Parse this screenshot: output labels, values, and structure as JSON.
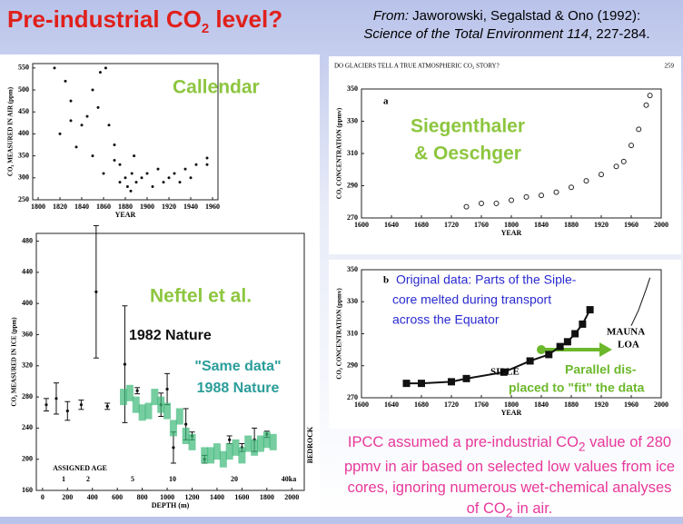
{
  "slide": {
    "title": [
      "Pre-industrial CO",
      "2",
      " level?"
    ],
    "citation": [
      "From:",
      " Jaworowski, Segalstad & Ono (1992):",
      "Science of the Total Environment 114",
      ", 227-284."
    ],
    "footer": [
      "IPCC assumed a pre-industrial CO",
      "2",
      " value of 280 ppmv in air based on selected low values from ice cores, ignoring numerous wet-chemical analyses of CO",
      "2",
      " in air."
    ]
  },
  "chart_data": [
    {
      "type": "scatter",
      "xlabel": "YEAR",
      "ylabel": "CO₂ MEASURED IN AIR (ppm)",
      "xlim": [
        1795,
        1965
      ],
      "ylim": [
        250,
        560
      ],
      "xticks": [
        1800,
        1820,
        1840,
        1860,
        1880,
        1900,
        1920,
        1940,
        1960
      ],
      "yticks": [
        250,
        300,
        350,
        400,
        450,
        500,
        550
      ],
      "annotations": [
        "Callendar"
      ],
      "series": [
        {
          "marker": "dot",
          "color": "#111111",
          "x": [
            1815,
            1820,
            1825,
            1830,
            1830,
            1835,
            1840,
            1845,
            1850,
            1850,
            1855,
            1857,
            1860,
            1862,
            1865,
            1870,
            1870,
            1875,
            1875,
            1880,
            1882,
            1885,
            1886,
            1888,
            1890,
            1895,
            1900,
            1905,
            1910,
            1915,
            1920,
            1925,
            1930,
            1935,
            1940,
            1945,
            1955,
            1955
          ],
          "values": [
            550,
            400,
            520,
            475,
            430,
            370,
            420,
            440,
            500,
            350,
            460,
            540,
            310,
            550,
            420,
            375,
            340,
            290,
            330,
            300,
            280,
            270,
            310,
            350,
            290,
            300,
            310,
            280,
            320,
            290,
            300,
            310,
            290,
            320,
            300,
            330,
            330,
            345
          ]
        }
      ]
    },
    {
      "type": "errorbar",
      "xlabel": "DEPTH (m)",
      "ylabel": "CO₂ MEASURED IN ICE (ppm)",
      "xlim": [
        -50,
        2100
      ],
      "ylim": [
        160,
        490
      ],
      "xticks": [
        0,
        200,
        400,
        600,
        800,
        1000,
        1200,
        1400,
        1600,
        1800,
        2000
      ],
      "yticks": [
        160,
        200,
        240,
        280,
        320,
        360,
        400,
        440,
        480
      ],
      "annotations": [
        "Neftel et al.",
        "1982 Nature",
        "\"Same data\"",
        "1988 Nature",
        "ASSIGNED AGE",
        "1",
        "2",
        "5",
        "10",
        "20",
        "40ka",
        "BEDROCK"
      ],
      "series": [
        {
          "marker": "errorbar",
          "color": "#111111",
          "x": [
            30,
            110,
            200,
            310,
            430,
            520,
            660,
            760,
            950,
            1000,
            1050,
            1150,
            1200,
            1300,
            1500,
            1600,
            1700,
            1800
          ],
          "values": [
            270,
            278,
            262,
            270,
            415,
            268,
            322,
            288,
            270,
            290,
            215,
            245,
            230,
            200,
            225,
            215,
            225,
            232
          ],
          "errors": [
            8,
            20,
            12,
            6,
            85,
            4,
            75,
            4,
            15,
            20,
            20,
            20,
            5,
            5,
            5,
            5,
            15,
            4
          ]
        },
        {
          "marker": "band",
          "color": "#3cb878",
          "x": [
            650,
            700,
            750,
            800,
            850,
            900,
            950,
            1000,
            1050,
            1100,
            1150,
            1200,
            1300,
            1350,
            1400,
            1450,
            1500,
            1550,
            1600,
            1650,
            1700,
            1750,
            1800,
            1850
          ],
          "values": [
            280,
            285,
            270,
            260,
            262,
            280,
            270,
            262,
            240,
            255,
            230,
            222,
            205,
            205,
            210,
            200,
            210,
            215,
            205,
            220,
            215,
            220,
            225,
            222
          ]
        }
      ]
    },
    {
      "type": "scatter",
      "xlabel": "YEAR",
      "ylabel": "CO₂ CONCENTRATION (ppmv)",
      "xlim": [
        1600,
        2000
      ],
      "ylim": [
        270,
        350
      ],
      "xticks": [
        1600,
        1640,
        1680,
        1720,
        1760,
        1800,
        1840,
        1880,
        1920,
        1960,
        2000
      ],
      "yticks": [
        270,
        290,
        310,
        330,
        350
      ],
      "annotations": [
        "DO GLACIERS TELL A TRUE ATMOSPHERIC CO₂ STORY?",
        "259",
        "a",
        "Siegenthaler",
        "& Oeschger"
      ],
      "series": [
        {
          "marker": "circle",
          "color": "#222222",
          "x": [
            1740,
            1760,
            1780,
            1800,
            1820,
            1840,
            1860,
            1880,
            1900,
            1920,
            1940,
            1950,
            1960,
            1970,
            1980,
            1985
          ],
          "values": [
            277,
            279,
            279,
            281,
            283,
            284,
            286,
            289,
            293,
            297,
            302,
            305,
            315,
            325,
            340,
            346
          ]
        }
      ]
    },
    {
      "type": "scatter",
      "xlabel": "YEAR",
      "ylabel": "CO₂ CONCENTRATION (ppmv)",
      "xlim": [
        1600,
        2000
      ],
      "ylim": [
        270,
        350
      ],
      "xticks": [
        1600,
        1640,
        1680,
        1720,
        1760,
        1800,
        1840,
        1880,
        1920,
        1960,
        2000
      ],
      "yticks": [
        270,
        290,
        310,
        330,
        350
      ],
      "annotations": [
        "b",
        "Original data: Parts of the Siple-",
        "core melted during transport",
        "across the Equator",
        "MAUNA",
        "LOA",
        "SIPLE",
        "Parallel dis-",
        "placed to \"fit\" the data"
      ],
      "series": [
        {
          "marker": "square",
          "line": true,
          "color": "#111111",
          "x": [
            1660,
            1680,
            1720,
            1740,
            1790,
            1825,
            1850,
            1865,
            1875,
            1885,
            1895,
            1905
          ],
          "values": [
            279,
            279,
            280,
            282,
            286,
            293,
            297,
            302,
            305,
            310,
            316,
            325
          ]
        },
        {
          "marker": "line",
          "color": "#111111",
          "x": [
            1960,
            1970,
            1980,
            1985
          ],
          "values": [
            315,
            325,
            338,
            345
          ]
        }
      ]
    }
  ]
}
